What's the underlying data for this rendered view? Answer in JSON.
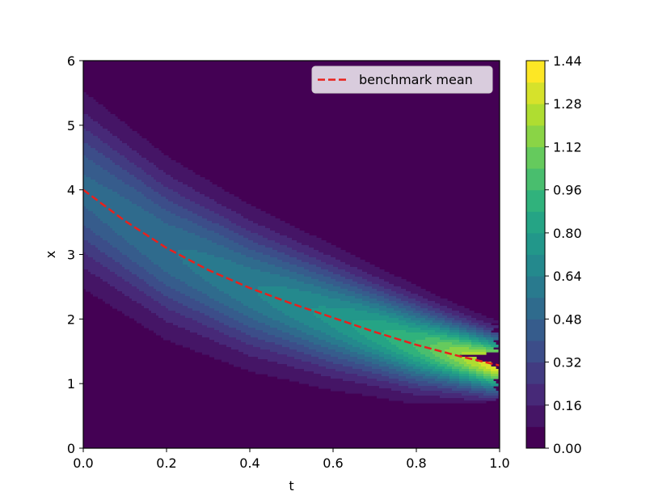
{
  "chart_data": {
    "type": "heatmap",
    "subtype": "filled-contour",
    "title": "",
    "xlabel": "t",
    "ylabel": "x",
    "xlim": [
      0.0,
      1.0
    ],
    "ylim": [
      0,
      6
    ],
    "x_ticks": [
      "0.0",
      "0.2",
      "0.4",
      "0.6",
      "0.8",
      "1.0"
    ],
    "y_ticks": [
      "0",
      "1",
      "2",
      "3",
      "4",
      "5",
      "6"
    ],
    "colormap": "viridis",
    "colorbar": {
      "min": 0.0,
      "max": 1.44,
      "step": 0.08,
      "ticks": [
        "0.00",
        "0.16",
        "0.32",
        "0.48",
        "0.64",
        "0.80",
        "0.96",
        "1.12",
        "1.28",
        "1.44"
      ]
    },
    "density": {
      "mean_t": [
        0.0,
        0.2,
        0.4,
        0.6,
        0.8,
        1.0
      ],
      "mean_x": [
        4.0,
        3.1,
        2.48,
        2.02,
        1.6,
        1.28
      ],
      "peak_t": [
        0.0,
        0.2,
        0.4,
        0.6,
        0.8,
        1.0
      ],
      "peak_value": [
        0.5,
        0.55,
        0.63,
        0.75,
        0.97,
        1.41
      ]
    },
    "series": [
      {
        "name": "benchmark mean",
        "style": "dashed",
        "color": "#e8211c",
        "t": [
          0.0,
          0.1,
          0.2,
          0.3,
          0.4,
          0.5,
          0.6,
          0.7,
          0.8,
          0.9,
          1.0
        ],
        "x": [
          4.0,
          3.52,
          3.1,
          2.76,
          2.48,
          2.24,
          2.02,
          1.8,
          1.6,
          1.43,
          1.28
        ]
      }
    ],
    "legend": {
      "position": "top-right",
      "entries": [
        "benchmark mean"
      ]
    },
    "grid": false
  }
}
